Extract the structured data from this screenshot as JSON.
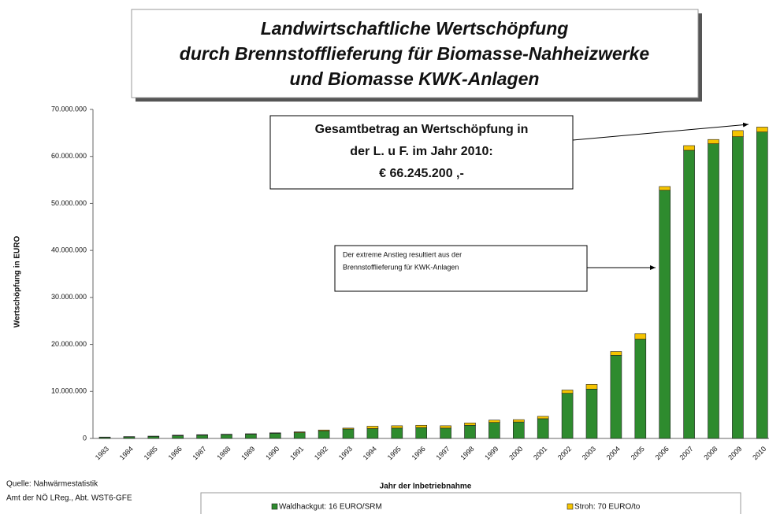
{
  "chart_data": {
    "type": "bar",
    "stacked": true,
    "title": [
      "Landwirtschaftliche Wertschöpfung",
      "durch Brennstofflieferung für Biomasse-Nahheizwerke",
      "und Biomasse KWK-Anlagen"
    ],
    "x_label": "Jahr der Inbetriebnahme",
    "y_label": "Wertschöpfung in EURO",
    "categories": [
      "1983",
      "1984",
      "1985",
      "1986",
      "1987",
      "1988",
      "1989",
      "1990",
      "1991",
      "1992",
      "1993",
      "1994",
      "1995",
      "1996",
      "1997",
      "1998",
      "1999",
      "2000",
      "2001",
      "2002",
      "2003",
      "2004",
      "2005",
      "2006",
      "2007",
      "2008",
      "2009",
      "2010"
    ],
    "series": [
      {
        "name": "Waldhackgut: 16 EURO/SRM",
        "color": "#2e8b2e",
        "values": [
          250000,
          350000,
          450000,
          600000,
          700000,
          800000,
          900000,
          1100000,
          1250000,
          1600000,
          2000000,
          2100000,
          2200000,
          2300000,
          2200000,
          2800000,
          3400000,
          3500000,
          4200000,
          9600000,
          10500000,
          17700000,
          21100000,
          52800000,
          61300000,
          62700000,
          64200000,
          65200000
        ]
      },
      {
        "name": "Stroh: 70 EURO/to",
        "color": "#f5c400",
        "values": [
          50000,
          50000,
          50000,
          100000,
          100000,
          100000,
          100000,
          100000,
          150000,
          200000,
          200000,
          500000,
          500000,
          500000,
          500000,
          500000,
          500000,
          500000,
          500000,
          700000,
          1000000,
          800000,
          1200000,
          800000,
          1000000,
          900000,
          1300000,
          1045200
        ]
      }
    ],
    "ylim": [
      0,
      70000000
    ],
    "yticks": [
      0,
      {
        "value": 10000000,
        "label": "10.000.000"
      },
      {
        "value": 20000000,
        "label": "20.000.000"
      },
      {
        "value": 30000000,
        "label": "30.000.000"
      },
      {
        "value": 40000000,
        "label": "40.000.000"
      },
      {
        "value": 50000000,
        "label": "50.000.000"
      },
      {
        "value": 60000000,
        "label": "60.000.000"
      },
      {
        "value": 70000000,
        "label": "70.000.000"
      }
    ],
    "annotations": [
      {
        "lines": [
          "Gesamtbetrag an Wertschöpfung  in",
          "der L. u F. im Jahr 2010:",
          "€ 66.245.200 ,-"
        ]
      },
      {
        "lines": [
          "Der extreme Anstieg resultiert aus der",
          "Brennstofflieferung für KWK-Anlagen"
        ]
      }
    ],
    "source": [
      "Quelle: Nahwärmestatistik",
      "Amt der NÖ LReg., Abt. WST6-GFE"
    ]
  }
}
